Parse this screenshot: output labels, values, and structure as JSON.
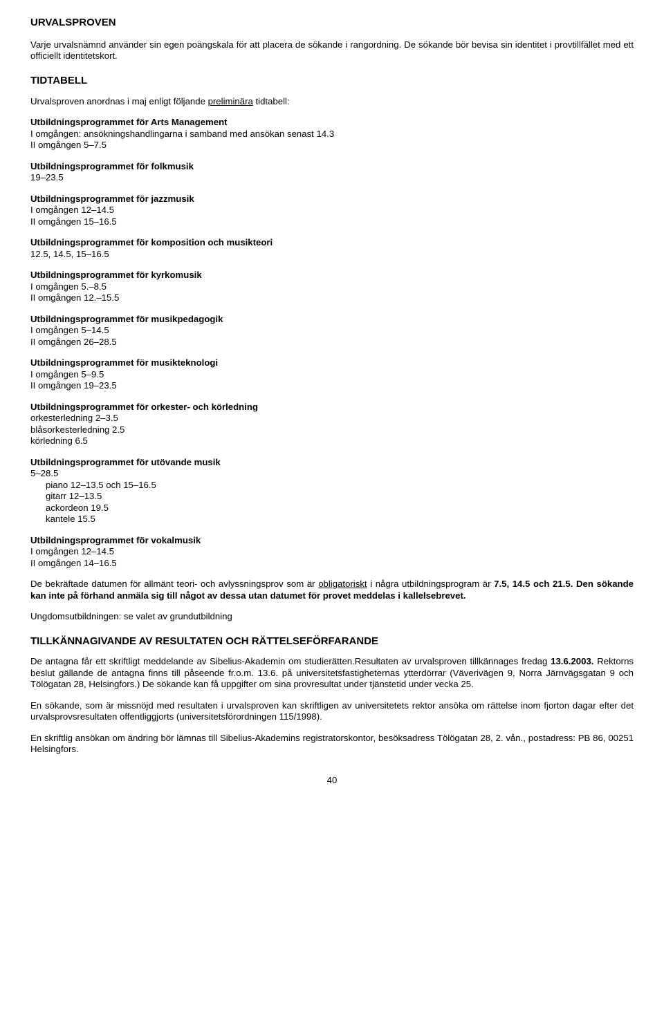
{
  "section1": {
    "title": "URVALSPROVEN",
    "intro": "Varje urvalsnämnd använder sin egen poängskala för att placera de sökande i rangordning. De sökande bör bevisa sin identitet i provtillfället med ett officiellt identitetskort."
  },
  "tidtabell": {
    "title": "TIDTABELL",
    "intro_pre": "Urvalsproven anordnas i maj enligt följande ",
    "intro_ul": "preliminära",
    "intro_post": " tidtabell:",
    "arts": {
      "heading": "Utbildningsprogrammet för Arts Management",
      "l1": "I omgången: ansökningshandlingarna i samband med ansökan senast 14.3",
      "l2": "II omgången 5–7.5"
    },
    "folk": {
      "heading": "Utbildningsprogrammet för folkmusik",
      "l1": "19–23.5"
    },
    "jazz": {
      "heading": "Utbildningsprogrammet för jazzmusik",
      "l1": "I omgången 12–14.5",
      "l2": "II omgången 15–16.5"
    },
    "komp": {
      "heading": "Utbildningsprogrammet för komposition och musikteori",
      "l1": "12.5, 14.5, 15–16.5"
    },
    "kyrk": {
      "heading": "Utbildningsprogrammet för kyrkomusik",
      "l1": "I omgången 5.–8.5",
      "l2": "II omgången 12.–15.5"
    },
    "ped": {
      "heading": "Utbildningsprogrammet för musikpedagogik",
      "l1": "I omgången 5–14.5",
      "l2": "II omgången 26–28.5"
    },
    "tek": {
      "heading": "Utbildningsprogrammet för musikteknologi",
      "l1": "I omgången 5–9.5",
      "l2": "II omgången 19–23.5"
    },
    "ork": {
      "heading": "Utbildningsprogrammet för orkester- och körledning",
      "l1": "orkesterledning 2–3.5",
      "l2": "blåsorkesterledning 2.5",
      "l3": "körledning 6.5"
    },
    "uto": {
      "heading": "Utbildningsprogrammet för utövande musik",
      "l1": "5–28.5",
      "i1": "piano 12–13.5 och 15–16.5",
      "i2": "gitarr 12–13.5",
      "i3": "ackordeon 19.5",
      "i4": "kantele 15.5"
    },
    "vok": {
      "heading": "Utbildningsprogrammet för vokalmusik",
      "l1": "I omgången 12–14.5",
      "l2": "II omgången 14–16.5"
    },
    "confirm_pre": "De bekräftade datumen för allmänt teori- och avlyssningsprov som är ",
    "confirm_ul": "obligatoriskt",
    "confirm_mid": " i några utbildningsprogram är ",
    "confirm_bold": "7.5, 14.5 och 21.5. Den sökande kan inte på förhand anmäla sig till något av dessa utan datumet för provet meddelas i kallelsebrevet.",
    "ungdom": "Ungdomsutbildningen: se valet av grundutbildning"
  },
  "results": {
    "title": "TILLKÄNNAGIVANDE AV RESULTATEN OCH RÄTTELSEFÖRFARANDE",
    "p1_pre": "De antagna får ett skriftligt meddelande av Sibelius-Akademin om studierätten.Resultaten av urvalsproven tillkännages fredag ",
    "p1_bold": "13.6.2003.",
    "p1_post": " Rektorns beslut gällande de antagna finns till påseende fr.o.m. 13.6. på universitetsfastigheternas ytterdörrar (Väverivägen 9, Norra Järnvägsgatan 9 och Tölögatan 28, Helsingfors.) De sökande kan få uppgifter om sina provresultat under tjänstetid under vecka 25.",
    "p2": "En sökande, som är missnöjd med resultaten i urvalsproven kan skriftligen av universitetets rektor ansöka om rättelse inom fjorton dagar efter det urvalsprovsresultaten offentliggjorts (universitetsförordningen 115/1998).",
    "p3": "En skriftlig ansökan om ändring bör lämnas till Sibelius-Akademins registratorskontor, besöksadress Tölögatan 28, 2. vån., postadress: PB 86, 00251 Helsingfors."
  },
  "page_number": "40"
}
